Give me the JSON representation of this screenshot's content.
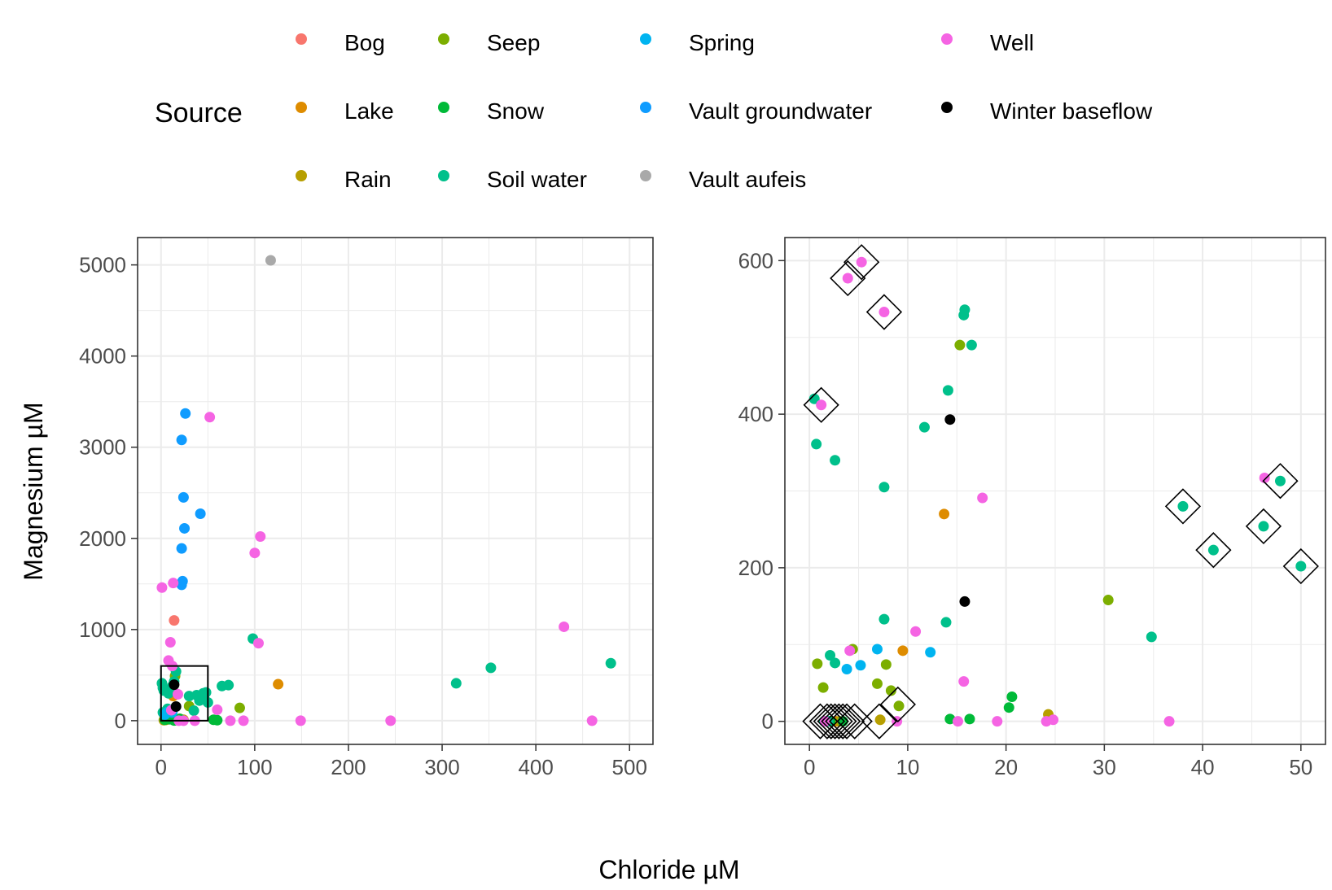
{
  "legend": {
    "title": "Source",
    "entries": [
      {
        "name": "Bog",
        "color": "#F8766D"
      },
      {
        "name": "Lake",
        "color": "#DE8C00"
      },
      {
        "name": "Rain",
        "color": "#B79F00"
      },
      {
        "name": "Seep",
        "color": "#7CAE00"
      },
      {
        "name": "Snow",
        "color": "#00BA38"
      },
      {
        "name": "Soil water",
        "color": "#00C08B"
      },
      {
        "name": "Spring",
        "color": "#00B4F0"
      },
      {
        "name": "Vault groundwater",
        "color": "#0F9CFF"
      },
      {
        "name": "Vault aufeis",
        "color": "#A9A9A9"
      },
      {
        "name": "Well",
        "color": "#F564E3"
      },
      {
        "name": "Winter baseflow",
        "color": "#000000"
      }
    ]
  },
  "xlabel": "Chloride µM",
  "ylabel": "Magnesium µM",
  "chart_data": [
    {
      "type": "scatter",
      "panel": "left",
      "xlim": [
        -25,
        525
      ],
      "ylim": [
        -260,
        5300
      ],
      "xticks": [
        0,
        100,
        200,
        300,
        400,
        500
      ],
      "yticks": [
        0,
        1000,
        2000,
        3000,
        4000,
        5000
      ],
      "zoom_box": {
        "x": [
          0,
          50
        ],
        "y": [
          0,
          600
        ]
      },
      "series": [
        {
          "name": "Bog",
          "points": [
            [
              14,
              1100
            ]
          ]
        },
        {
          "name": "Lake",
          "points": [
            [
              13,
              270
            ],
            [
              125,
              400
            ],
            [
              20,
              20
            ]
          ]
        },
        {
          "name": "Rain",
          "points": [
            [
              24,
              10
            ],
            [
              3,
              5
            ],
            [
              5,
              8
            ]
          ]
        },
        {
          "name": "Seep",
          "points": [
            [
              30,
              160
            ],
            [
              15,
              490
            ],
            [
              84,
              140
            ],
            [
              8,
              70
            ],
            [
              3,
              75
            ]
          ]
        },
        {
          "name": "Snow",
          "points": [
            [
              20,
              20
            ],
            [
              16,
              5
            ],
            [
              14,
              2
            ],
            [
              56,
              10
            ],
            [
              60,
              5
            ],
            [
              4,
              10
            ],
            [
              9,
              15
            ]
          ]
        },
        {
          "name": "Soil water",
          "points": [
            [
              16,
              540
            ],
            [
              1,
              410
            ],
            [
              2,
              360
            ],
            [
              14,
              430
            ],
            [
              12,
              380
            ],
            [
              7,
              130
            ],
            [
              8,
              300
            ],
            [
              38,
              280
            ],
            [
              41,
              220
            ],
            [
              46,
              250
            ],
            [
              48,
              310
            ],
            [
              50,
              200
            ],
            [
              35,
              110
            ],
            [
              98,
              900
            ],
            [
              65,
              380
            ],
            [
              72,
              390
            ],
            [
              315,
              410
            ],
            [
              352,
              580
            ],
            [
              480,
              630
            ],
            [
              30,
              270
            ],
            [
              45,
              300
            ],
            [
              3,
              330
            ],
            [
              2,
              90
            ]
          ]
        },
        {
          "name": "Spring",
          "points": [
            [
              12,
              90
            ],
            [
              7,
              95
            ],
            [
              5,
              75
            ],
            [
              4,
              65
            ]
          ]
        },
        {
          "name": "Vault groundwater",
          "points": [
            [
              26,
              3370
            ],
            [
              22,
              3080
            ],
            [
              24,
              2450
            ],
            [
              42,
              2270
            ],
            [
              25,
              2110
            ],
            [
              22,
              1890
            ],
            [
              23,
              1530
            ],
            [
              22,
              1490
            ]
          ]
        },
        {
          "name": "Vault aufeis",
          "points": [
            [
              117,
              5050
            ]
          ]
        },
        {
          "name": "Well",
          "points": [
            [
              52,
              3330
            ],
            [
              106,
              2020
            ],
            [
              100,
              1840
            ],
            [
              1,
              1460
            ],
            [
              13,
              1510
            ],
            [
              10,
              860
            ],
            [
              104,
              850
            ],
            [
              430,
              1030
            ],
            [
              12,
              600
            ],
            [
              8,
              660
            ],
            [
              60,
              120
            ],
            [
              18,
              290
            ],
            [
              11,
              115
            ],
            [
              36,
              0
            ],
            [
              74,
              0
            ],
            [
              88,
              0
            ],
            [
              149,
              0
            ],
            [
              245,
              0
            ],
            [
              460,
              0
            ],
            [
              19,
              0
            ],
            [
              24,
              0
            ]
          ]
        },
        {
          "name": "Winter baseflow",
          "points": [
            [
              14,
              395
            ],
            [
              16,
              155
            ]
          ]
        }
      ]
    },
    {
      "type": "scatter",
      "panel": "right",
      "xlim": [
        -2.5,
        52.5
      ],
      "ylim": [
        -30,
        630
      ],
      "xticks": [
        0,
        10,
        20,
        30,
        40,
        50
      ],
      "yticks": [
        0,
        200,
        400,
        600
      ],
      "highlighted": [
        [
          5.3,
          598
        ],
        [
          3.9,
          577
        ],
        [
          7.6,
          533
        ],
        [
          1.2,
          412
        ],
        [
          47.9,
          313
        ],
        [
          38.0,
          280
        ],
        [
          41.1,
          223
        ],
        [
          46.2,
          254
        ],
        [
          50.0,
          202
        ],
        [
          9.0,
          22
        ],
        [
          1.1,
          0
        ],
        [
          1.8,
          0
        ],
        [
          2.2,
          0
        ],
        [
          2.6,
          0
        ],
        [
          3.0,
          0
        ],
        [
          3.4,
          0
        ],
        [
          3.8,
          0
        ],
        [
          4.6,
          0
        ],
        [
          7.1,
          0
        ]
      ],
      "series": [
        {
          "name": "Lake",
          "points": [
            [
              13.7,
              270
            ],
            [
              9.5,
              92
            ],
            [
              2.7,
              0
            ]
          ]
        },
        {
          "name": "Rain",
          "points": [
            [
              24.3,
              9
            ],
            [
              7.2,
              2
            ],
            [
              3.1,
              0
            ]
          ]
        },
        {
          "name": "Seep",
          "points": [
            [
              15.3,
              490
            ],
            [
              30.4,
              158
            ],
            [
              4.4,
              94
            ],
            [
              0.8,
              75
            ],
            [
              7.8,
              74
            ],
            [
              1.4,
              44
            ],
            [
              8.3,
              40
            ],
            [
              6.9,
              49
            ],
            [
              9.1,
              20
            ]
          ]
        },
        {
          "name": "Snow",
          "points": [
            [
              20.6,
              32
            ],
            [
              20.3,
              18
            ],
            [
              14.3,
              3
            ],
            [
              16.3,
              3
            ],
            [
              2.1,
              0
            ],
            [
              3.4,
              0
            ]
          ]
        },
        {
          "name": "Soil water",
          "points": [
            [
              15.8,
              536
            ],
            [
              15.7,
              529
            ],
            [
              16.5,
              490
            ],
            [
              14.1,
              431
            ],
            [
              0.5,
              420
            ],
            [
              11.7,
              383
            ],
            [
              0.7,
              361
            ],
            [
              2.6,
              340
            ],
            [
              7.6,
              305
            ],
            [
              47.9,
              313
            ],
            [
              38.0,
              280
            ],
            [
              41.1,
              223
            ],
            [
              46.2,
              254
            ],
            [
              50.0,
              202
            ],
            [
              7.6,
              133
            ],
            [
              13.9,
              129
            ],
            [
              34.8,
              110
            ],
            [
              2.1,
              86
            ],
            [
              2.6,
              76
            ],
            [
              1.5,
              0
            ],
            [
              1.9,
              0
            ]
          ]
        },
        {
          "name": "Spring",
          "points": [
            [
              12.3,
              90
            ],
            [
              6.9,
              94
            ],
            [
              5.2,
              73
            ],
            [
              3.8,
              68
            ]
          ]
        },
        {
          "name": "Well",
          "points": [
            [
              5.3,
              598
            ],
            [
              3.9,
              577
            ],
            [
              7.6,
              533
            ],
            [
              1.2,
              412
            ],
            [
              46.3,
              317
            ],
            [
              17.6,
              291
            ],
            [
              10.8,
              117
            ],
            [
              4.1,
              92
            ],
            [
              15.7,
              52
            ],
            [
              8.9,
              0
            ],
            [
              15.1,
              0
            ],
            [
              19.1,
              0
            ],
            [
              24.1,
              0
            ],
            [
              24.8,
              2
            ],
            [
              36.6,
              0
            ],
            [
              1.6,
              0
            ]
          ]
        },
        {
          "name": "Winter baseflow",
          "points": [
            [
              14.3,
              393
            ],
            [
              15.8,
              156
            ]
          ]
        }
      ]
    }
  ]
}
